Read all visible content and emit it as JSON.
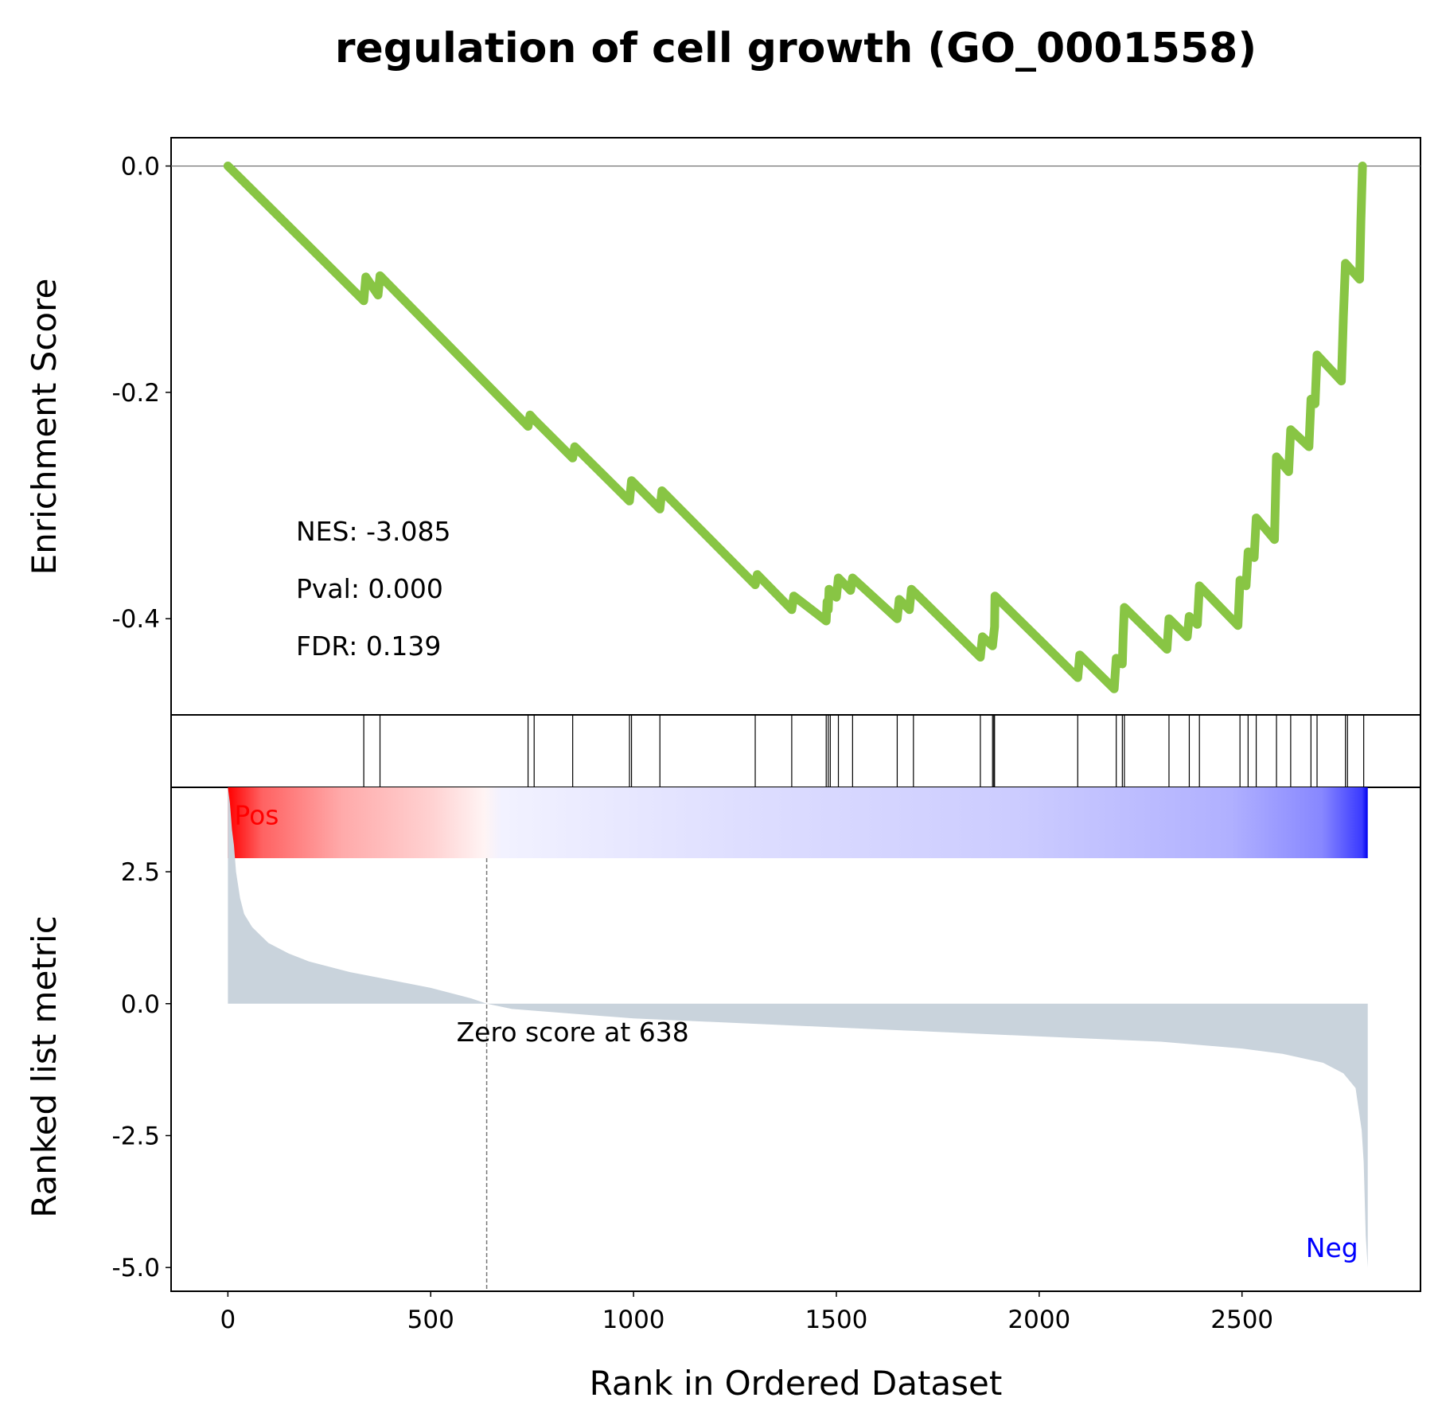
{
  "chart_data": {
    "type": "line",
    "title": "regulation of cell growth (GO_0001558)",
    "xlabel": "Rank in Ordered Dataset",
    "x_ticks": [
      "0",
      "500",
      "1000",
      "1500",
      "2000",
      "2500"
    ],
    "xlim": [
      -140,
      2940
    ],
    "n_genes": 2810,
    "colors": {
      "es_line": "#88c544",
      "metric_fill": "#c9d3dc",
      "pos_label": "#ff0000",
      "neg_label": "#0000ff"
    },
    "enrichment_panel": {
      "ylabel": "Enrichment Score",
      "y_ticks": [
        "0.0",
        "-0.2",
        "-0.4"
      ],
      "ylim": [
        -0.485,
        0.025
      ],
      "stats": {
        "nes": "NES: -3.085",
        "pval": "Pval: 0.000",
        "fdr": "FDR: 0.139"
      },
      "es_curve": [
        [
          0,
          0.0
        ],
        [
          335,
          -0.119
        ],
        [
          340,
          -0.098
        ],
        [
          370,
          -0.114
        ],
        [
          375,
          -0.097
        ],
        [
          740,
          -0.23
        ],
        [
          745,
          -0.22
        ],
        [
          755,
          -0.224
        ],
        [
          850,
          -0.258
        ],
        [
          855,
          -0.248
        ],
        [
          990,
          -0.296
        ],
        [
          995,
          -0.278
        ],
        [
          1065,
          -0.303
        ],
        [
          1070,
          -0.287
        ],
        [
          1300,
          -0.37
        ],
        [
          1305,
          -0.361
        ],
        [
          1390,
          -0.392
        ],
        [
          1395,
          -0.38
        ],
        [
          1475,
          -0.402
        ],
        [
          1477,
          -0.385
        ],
        [
          1480,
          -0.392
        ],
        [
          1482,
          -0.374
        ],
        [
          1500,
          -0.381
        ],
        [
          1505,
          -0.364
        ],
        [
          1535,
          -0.375
        ],
        [
          1540,
          -0.364
        ],
        [
          1650,
          -0.4
        ],
        [
          1655,
          -0.383
        ],
        [
          1680,
          -0.392
        ],
        [
          1685,
          -0.374
        ],
        [
          1855,
          -0.434
        ],
        [
          1860,
          -0.416
        ],
        [
          1885,
          -0.424
        ],
        [
          1890,
          -0.407
        ],
        [
          1891,
          -0.38
        ],
        [
          2095,
          -0.452
        ],
        [
          2100,
          -0.432
        ],
        [
          2185,
          -0.462
        ],
        [
          2190,
          -0.435
        ],
        [
          2205,
          -0.44
        ],
        [
          2207,
          -0.415
        ],
        [
          2210,
          -0.39
        ],
        [
          2315,
          -0.427
        ],
        [
          2320,
          -0.4
        ],
        [
          2365,
          -0.416
        ],
        [
          2370,
          -0.398
        ],
        [
          2390,
          -0.405
        ],
        [
          2395,
          -0.371
        ],
        [
          2490,
          -0.406
        ],
        [
          2495,
          -0.366
        ],
        [
          2510,
          -0.371
        ],
        [
          2515,
          -0.341
        ],
        [
          2530,
          -0.346
        ],
        [
          2535,
          -0.311
        ],
        [
          2580,
          -0.33
        ],
        [
          2585,
          -0.257
        ],
        [
          2615,
          -0.27
        ],
        [
          2620,
          -0.233
        ],
        [
          2665,
          -0.248
        ],
        [
          2670,
          -0.206
        ],
        [
          2680,
          -0.21
        ],
        [
          2685,
          -0.167
        ],
        [
          2745,
          -0.19
        ],
        [
          2750,
          -0.133
        ],
        [
          2755,
          -0.086
        ],
        [
          2790,
          -0.1
        ],
        [
          2793,
          -0.049
        ],
        [
          2797,
          0.0
        ]
      ]
    },
    "hits": [
      335,
      375,
      740,
      755,
      850,
      990,
      995,
      1065,
      1300,
      1390,
      1475,
      1480,
      1485,
      1505,
      1540,
      1650,
      1690,
      1855,
      1885,
      1888,
      1890,
      2095,
      2190,
      2205,
      2210,
      2320,
      2370,
      2395,
      2495,
      2515,
      2535,
      2585,
      2620,
      2670,
      2685,
      2755,
      2760,
      2800
    ],
    "metric_panel": {
      "ylabel": "Ranked list metric",
      "y_ticks": [
        "2.5",
        "0.0",
        "-2.5",
        "-5.0"
      ],
      "ylim": [
        -5.45,
        4.1
      ],
      "pos_label": "Pos",
      "neg_label": "Neg",
      "zero_cross_rank": 638,
      "zero_label": "Zero score at 638",
      "metric_curve": [
        [
          0,
          4.1
        ],
        [
          5,
          3.8
        ],
        [
          10,
          3.3
        ],
        [
          15,
          3.0
        ],
        [
          20,
          2.5
        ],
        [
          30,
          2.0
        ],
        [
          40,
          1.7
        ],
        [
          60,
          1.45
        ],
        [
          80,
          1.3
        ],
        [
          100,
          1.15
        ],
        [
          150,
          0.95
        ],
        [
          200,
          0.8
        ],
        [
          300,
          0.6
        ],
        [
          400,
          0.45
        ],
        [
          500,
          0.3
        ],
        [
          600,
          0.1
        ],
        [
          638,
          0.0
        ],
        [
          700,
          -0.1
        ],
        [
          1000,
          -0.28
        ],
        [
          1500,
          -0.45
        ],
        [
          2000,
          -0.62
        ],
        [
          2300,
          -0.72
        ],
        [
          2500,
          -0.85
        ],
        [
          2600,
          -0.95
        ],
        [
          2700,
          -1.12
        ],
        [
          2750,
          -1.32
        ],
        [
          2780,
          -1.6
        ],
        [
          2795,
          -2.4
        ],
        [
          2800,
          -3.0
        ],
        [
          2805,
          -4.4
        ],
        [
          2810,
          -5.0
        ]
      ]
    }
  }
}
